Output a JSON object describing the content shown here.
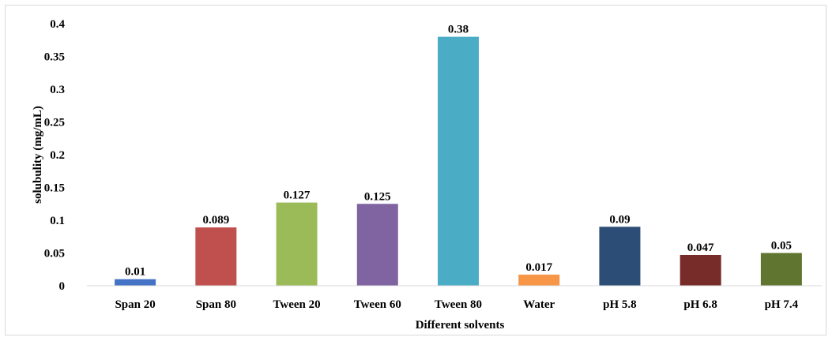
{
  "chart_data": {
    "type": "bar",
    "categories": [
      "Span 20",
      "Span 80",
      "Tween 20",
      "Tween 60",
      "Tween 80",
      "Water",
      "pH 5.8",
      "pH 6.8",
      "pH 7.4"
    ],
    "values": [
      0.01,
      0.089,
      0.127,
      0.125,
      0.38,
      0.017,
      0.09,
      0.047,
      0.05
    ],
    "data_labels": [
      "0.01",
      "0.089",
      "0.127",
      "0.125",
      "0.38",
      "0.017",
      "0.09",
      "0.047",
      "0.05"
    ],
    "bar_colors": [
      "#4472c4",
      "#c0504d",
      "#9bbb59",
      "#8064a2",
      "#4bacc6",
      "#f79646",
      "#2c4d75",
      "#772c2a",
      "#5f7530"
    ],
    "title": "",
    "xlabel": "Different solvents",
    "ylabel": "solubulity (mg/mL)",
    "ylim": [
      0,
      0.4
    ],
    "y_ticks": [
      0,
      0.05,
      0.1,
      0.15,
      0.2,
      0.25,
      0.3,
      0.35,
      0.4
    ],
    "y_tick_labels": [
      "0",
      "0.05",
      "0.1",
      "0.15",
      "0.2",
      "0.25",
      "0.3",
      "0.35",
      "0.4"
    ],
    "grid": false,
    "legend": "none"
  }
}
